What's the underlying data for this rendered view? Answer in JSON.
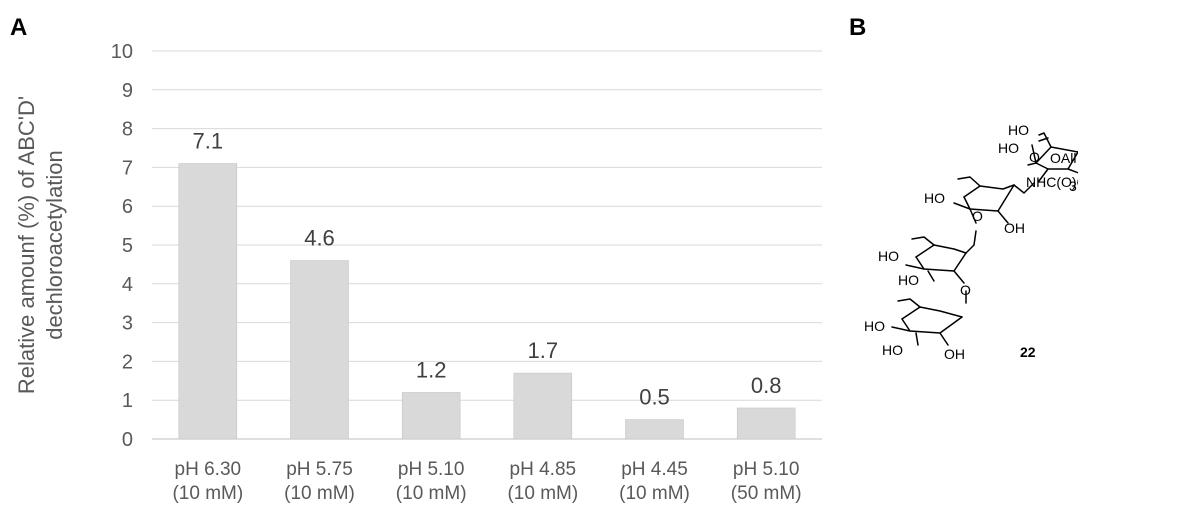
{
  "panels": {
    "a": "A",
    "b": "B"
  },
  "chart_data": {
    "type": "bar",
    "title": "",
    "ylabel_lines": [
      "Relative amounf (%) of ABC'D'",
      "dechloroacetylation"
    ],
    "xlabel": "",
    "categories": [
      [
        "pH 6.30",
        "(10 mM)"
      ],
      [
        "pH 5.75",
        "(10 mM)"
      ],
      [
        "pH 5.10",
        "(10 mM)"
      ],
      [
        "pH 4.85",
        "(10 mM)"
      ],
      [
        "pH 4.45",
        "(10 mM)"
      ],
      [
        "pH 5.10",
        "(50 mM)"
      ]
    ],
    "values": [
      7.1,
      4.6,
      1.2,
      1.7,
      0.5,
      0.8
    ],
    "data_labels": [
      "7.1",
      "4.6",
      "1.2",
      "1.7",
      "0.5",
      "0.8"
    ],
    "ylim": [
      0,
      10
    ],
    "yticks": [
      0,
      1,
      2,
      3,
      4,
      5,
      6,
      7,
      8,
      9,
      10
    ],
    "grid": true,
    "colors": {
      "bar": "#d9d9d9",
      "bar_edge": "#bfbfbf",
      "grid": "#d9d9d9",
      "text": "#595959"
    }
  },
  "structure": {
    "compound_number": "22",
    "labels": {
      "ho1": "HO",
      "ho2": "HO",
      "o_link1": "O",
      "oall": "OAll",
      "nh": "NHC(O)CCl",
      "sub3": "3",
      "ho3": "HO",
      "o_link2": "O",
      "oh1": "OH",
      "ho4": "HO",
      "ho5": "HO",
      "o_link3": "O",
      "ho6": "HO",
      "ho7": "HO",
      "oh2": "OH"
    }
  }
}
